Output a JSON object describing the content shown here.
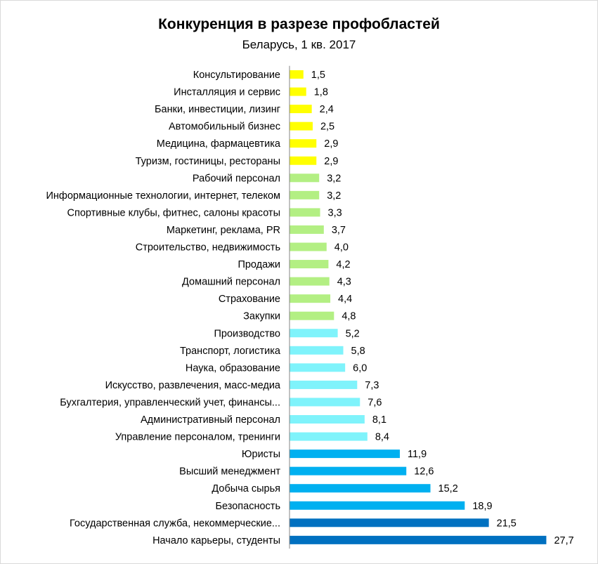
{
  "chart_data": {
    "type": "bar",
    "orientation": "horizontal",
    "title": "Конкуренция в разрезе профобластей",
    "subtitle": "Беларусь, 1 кв. 2017",
    "xlabel": "",
    "ylabel": "",
    "xlim": [
      0,
      28.5
    ],
    "grid": false,
    "legend": "none",
    "categories": [
      "Консультирование",
      "Инсталляция и сервис",
      "Банки, инвестиции, лизинг",
      "Автомобильный бизнес",
      "Медицина, фармацевтика",
      "Туризм, гостиницы, рестораны",
      "Рабочий персонал",
      "Информационные технологии, интернет, телеком",
      "Спортивные клубы, фитнес, салоны красоты",
      "Маркетинг, реклама, PR",
      "Строительство, недвижимость",
      "Продажи",
      "Домашний персонал",
      "Страхование",
      "Закупки",
      "Производство",
      "Транспорт, логистика",
      "Наука, образование",
      "Искусство, развлечения, масс-медиа",
      "Бухгалтерия, управленческий учет, финансы...",
      "Административный персонал",
      "Управление персоналом, тренинги",
      "Юристы",
      "Высший менеджмент",
      "Добыча сырья",
      "Безопасность",
      "Государственная служба, некоммерческие...",
      "Начало карьеры, студенты"
    ],
    "values": [
      1.5,
      1.8,
      2.4,
      2.5,
      2.9,
      2.9,
      3.2,
      3.2,
      3.3,
      3.7,
      4.0,
      4.2,
      4.3,
      4.4,
      4.8,
      5.2,
      5.8,
      6.0,
      7.3,
      7.6,
      8.1,
      8.4,
      11.9,
      12.6,
      15.2,
      18.9,
      21.5,
      27.7
    ],
    "value_labels": [
      "1,5",
      "1,8",
      "2,4",
      "2,5",
      "2,9",
      "2,9",
      "3,2",
      "3,2",
      "3,3",
      "3,7",
      "4,0",
      "4,2",
      "4,3",
      "4,4",
      "4,8",
      "5,2",
      "5,8",
      "6,0",
      "7,3",
      "7,6",
      "8,1",
      "8,4",
      "11,9",
      "12,6",
      "15,2",
      "18,9",
      "21,5",
      "27,7"
    ],
    "bar_colors": [
      "#ffff00",
      "#ffff00",
      "#ffff00",
      "#ffff00",
      "#ffff00",
      "#ffff00",
      "#b3ef83",
      "#b3ef83",
      "#b3ef83",
      "#b3ef83",
      "#b3ef83",
      "#b3ef83",
      "#b3ef83",
      "#b3ef83",
      "#b3ef83",
      "#7ff3fb",
      "#7ff3fb",
      "#7ff3fb",
      "#7ff3fb",
      "#7ff3fb",
      "#7ff3fb",
      "#7ff3fb",
      "#00b0f0",
      "#00b0f0",
      "#00b0f0",
      "#00b0f0",
      "#0070c0",
      "#0070c0"
    ],
    "axis_color": "#868686"
  }
}
